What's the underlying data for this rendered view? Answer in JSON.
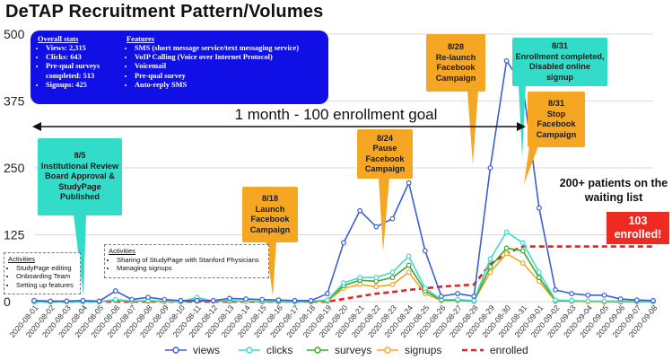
{
  "title": "DeTAP Recruitment Pattern/Volumes",
  "stats_box": {
    "overall_header": "Overall stats",
    "overall_items": [
      "Views: 2,315",
      "Clicks: 643",
      "Pre-qual surveys completed: 513",
      "Signups: 425"
    ],
    "features_header": "Features",
    "features_items": [
      "SMS (short message service/text messaging service)",
      "VoIP Calling (Voice over Internet Protocol)",
      "Voicemail",
      "Pre-qual survey",
      "Auto-reply SMS"
    ],
    "color": "#1010e6"
  },
  "goal_label": "1 month - 100 enrollment goal",
  "callouts": [
    {
      "id": "irb",
      "text": "8/5\nInstitutional Review Board Approval & StudyPage Published",
      "color": "#33dcc9"
    },
    {
      "id": "launch",
      "text": "8/18\nLaunch Facebook Campaign",
      "color": "#f5a623"
    },
    {
      "id": "pause",
      "text": "8/24\nPause Facebook Campaign",
      "color": "#f5a623"
    },
    {
      "id": "relaunch",
      "text": "8/28\nRe-launch Facebook Campaign",
      "color": "#f5a623"
    },
    {
      "id": "completed",
      "text": "8/31\nEnrollment completed, Disabled online signup",
      "color": "#33dcc9"
    },
    {
      "id": "stop",
      "text": "8/31\nStop Facebook Campaign",
      "color": "#f5a623"
    }
  ],
  "activities": [
    {
      "header": "Activities",
      "items": [
        "StudyPage editing",
        "Onboarding Team",
        "Setting up features"
      ]
    },
    {
      "header": "Activities",
      "items": [
        "Sharing of StudyPage with Stanford Physicians",
        "Managing signups"
      ]
    }
  ],
  "waiting_text": "200+ patients on the waiting list",
  "enrolled_text": "103 enrolled!",
  "chart_data": {
    "type": "line",
    "title": "DeTAP Recruitment Pattern/Volumes",
    "x": [
      "2020-08-01",
      "2020-08-02",
      "2020-08-03",
      "2020-08-04",
      "2020-08-05",
      "2020-08-06",
      "2020-08-07",
      "2020-08-08",
      "2020-08-09",
      "2020-08-10",
      "2020-08-11",
      "2020-08-12",
      "2020-08-13",
      "2020-08-14",
      "2020-08-15",
      "2020-08-16",
      "2020-08-17",
      "2020-08-18",
      "2020-08-19",
      "2020-08-20",
      "2020-08-21",
      "2020-08-22",
      "2020-08-23",
      "2020-08-24",
      "2020-08-25",
      "2020-08-26",
      "2020-08-27",
      "2020-08-28",
      "2020-08-29",
      "2020-08-30",
      "2020-08-31",
      "2020-09-01",
      "2020-09-02",
      "2020-09-03",
      "2020-09-04",
      "2020-09-05",
      "2020-09-06",
      "2020-09-07",
      "2020-09-08"
    ],
    "ylim": [
      0,
      500
    ],
    "yticks": [
      0,
      125,
      250,
      375,
      500
    ],
    "grid": true,
    "legend_position": "bottom",
    "series": [
      {
        "name": "views",
        "color": "#3a5fd0",
        "style": "line-marker",
        "values": [
          2,
          1,
          1,
          2,
          1,
          20,
          4,
          8,
          4,
          2,
          2,
          2,
          6,
          5,
          4,
          3,
          2,
          2,
          15,
          110,
          170,
          140,
          155,
          222,
          95,
          10,
          15,
          10,
          250,
          450,
          405,
          175,
          22,
          15,
          12,
          12,
          5,
          3,
          2
        ]
      },
      {
        "name": "clicks",
        "color": "#3ed9cf",
        "style": "line-marker",
        "values": [
          0,
          0,
          0,
          0,
          0,
          4,
          1,
          2,
          1,
          0,
          8,
          1,
          2,
          1,
          1,
          1,
          0,
          1,
          3,
          35,
          45,
          45,
          55,
          85,
          25,
          4,
          4,
          2,
          80,
          130,
          110,
          55,
          3,
          2,
          1,
          1,
          1,
          1,
          0
        ],
        "labels": []
      },
      {
        "name": "surveys",
        "color": "#3aa82e",
        "style": "line-marker",
        "values": [
          0,
          0,
          0,
          0,
          0,
          3,
          1,
          1,
          1,
          0,
          1,
          1,
          1,
          1,
          0,
          0,
          0,
          0,
          2,
          30,
          40,
          38,
          45,
          68,
          20,
          3,
          3,
          1,
          65,
          100,
          95,
          45,
          2,
          1,
          1,
          0,
          0,
          0,
          0
        ]
      },
      {
        "name": "signups",
        "color": "#f5a623",
        "style": "line-marker",
        "values": [
          0,
          0,
          0,
          0,
          0,
          2,
          1,
          1,
          0,
          0,
          6,
          1,
          1,
          1,
          0,
          0,
          0,
          0,
          1,
          25,
          32,
          28,
          32,
          55,
          15,
          2,
          2,
          1,
          55,
          90,
          72,
          38,
          1,
          1,
          0,
          0,
          0,
          0,
          0
        ]
      },
      {
        "name": "enrolled",
        "color": "#e8201f",
        "style": "dashed",
        "values": [
          0,
          0,
          0,
          0,
          0,
          0,
          0,
          0,
          0,
          0,
          0,
          0,
          0,
          0,
          0,
          0,
          0,
          0,
          0,
          5,
          10,
          15,
          18,
          22,
          25,
          28,
          30,
          32,
          70,
          90,
          103,
          103,
          103,
          103,
          103,
          103,
          103,
          103,
          103
        ]
      }
    ]
  }
}
